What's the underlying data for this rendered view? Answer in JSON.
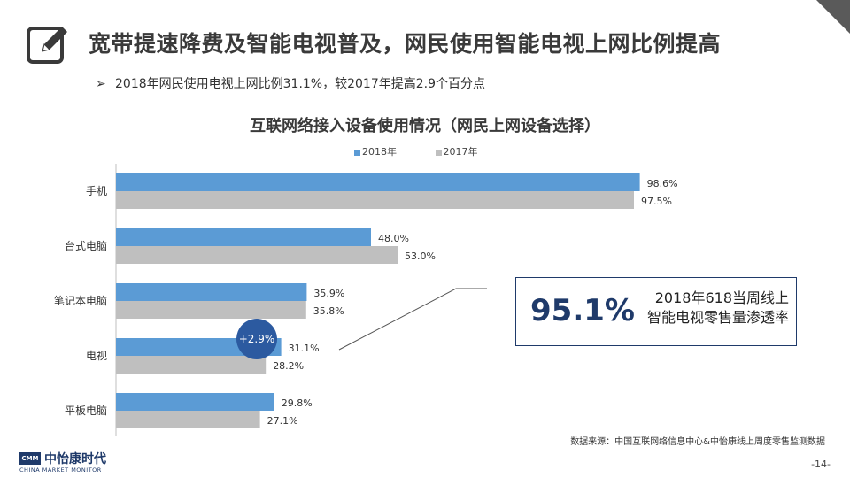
{
  "slide": {
    "title": "宽带提速降费及智能电视普及，网民使用智能电视上网比例提高",
    "subtitle_bullet": "➢",
    "subtitle": "2018年网民使用电视上网比例31.1%，较2017年提高2.9个百分点",
    "callout_value": "95.1%",
    "callout_line1": "2018年618当周线上",
    "callout_line2": "智能电视零售量渗透率",
    "badge": "+2.9%",
    "source": "数据来源：中国互联网络信息中心&中怡康线上周度零售监测数据",
    "page": "-14-",
    "logo_mark": "CMM",
    "logo_name": "中怡康时代",
    "logo_en": "CHINA MARKET MONITOR"
  },
  "colors": {
    "series_2018": "#5b9bd5",
    "series_2017": "#bfbfbf",
    "accent": "#1f3a6a"
  },
  "icons": [
    "edit-icon"
  ],
  "chart_data": {
    "type": "bar",
    "orientation": "horizontal",
    "title": "互联网络接入设备使用情况（网民上网设备选择）",
    "categories": [
      "手机",
      "台式电脑",
      "笔记本电脑",
      "电视",
      "平板电脑"
    ],
    "series": [
      {
        "name": "2018年",
        "values": [
          98.6,
          48.0,
          35.9,
          31.1,
          29.8
        ],
        "labels": [
          "98.6%",
          "48.0%",
          "35.9%",
          "31.1%",
          "29.8%"
        ]
      },
      {
        "name": "2017年",
        "values": [
          97.5,
          53.0,
          35.8,
          28.2,
          27.1
        ],
        "labels": [
          "97.5%",
          "53.0%",
          "35.8%",
          "28.2%",
          "27.1%"
        ]
      }
    ],
    "xlim": [
      0,
      100
    ],
    "grid": false,
    "legend": "top-center",
    "unit": "%"
  }
}
